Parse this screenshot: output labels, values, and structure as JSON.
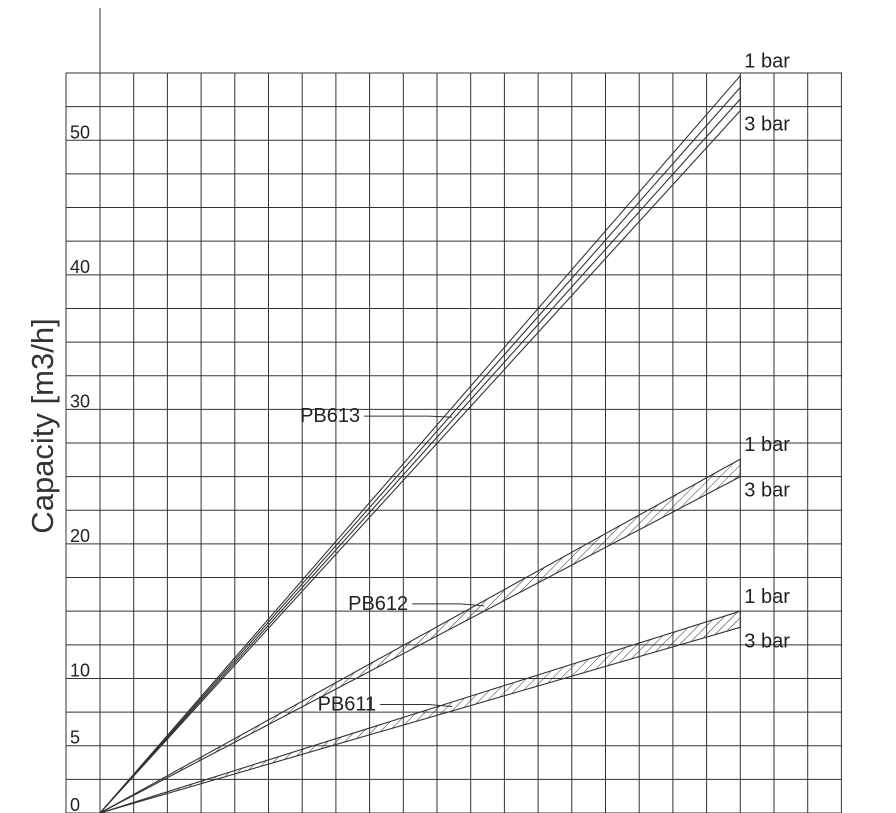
{
  "chart_data": {
    "type": "line",
    "title": "",
    "xlabel": "",
    "ylabel": "Capacity [m3/h]",
    "ylim": [
      0,
      55
    ],
    "xlim": [
      0,
      22
    ],
    "yticks": [
      {
        "value": 0,
        "label": "0"
      },
      {
        "value": 5,
        "label": "5"
      },
      {
        "value": 10,
        "label": "10"
      },
      {
        "value": 20,
        "label": "20"
      },
      {
        "value": 30,
        "label": "30"
      },
      {
        "value": 40,
        "label": "40"
      },
      {
        "value": 50,
        "label": "50"
      }
    ],
    "grid": true,
    "series": [
      {
        "name": "PB613",
        "hatched": false,
        "pressures": [
          {
            "name": "1 bar",
            "x": [
              0,
              19
            ],
            "y": [
              0,
              54.8
            ]
          },
          {
            "name": "3 bar",
            "x": [
              0,
              19
            ],
            "y": [
              0,
              52.2
            ]
          }
        ]
      },
      {
        "name": "PB612",
        "hatched": true,
        "pressures": [
          {
            "name": "1 bar",
            "x": [
              0,
              19
            ],
            "y": [
              0,
              26.3
            ]
          },
          {
            "name": "3 bar",
            "x": [
              0,
              19
            ],
            "y": [
              0,
              25.0
            ]
          }
        ]
      },
      {
        "name": "PB611",
        "hatched": true,
        "pressures": [
          {
            "name": "1 bar",
            "x": [
              0,
              19
            ],
            "y": [
              0,
              15.0
            ]
          },
          {
            "name": "3 bar",
            "x": [
              0,
              19
            ],
            "y": [
              0,
              13.8
            ]
          }
        ]
      }
    ]
  }
}
